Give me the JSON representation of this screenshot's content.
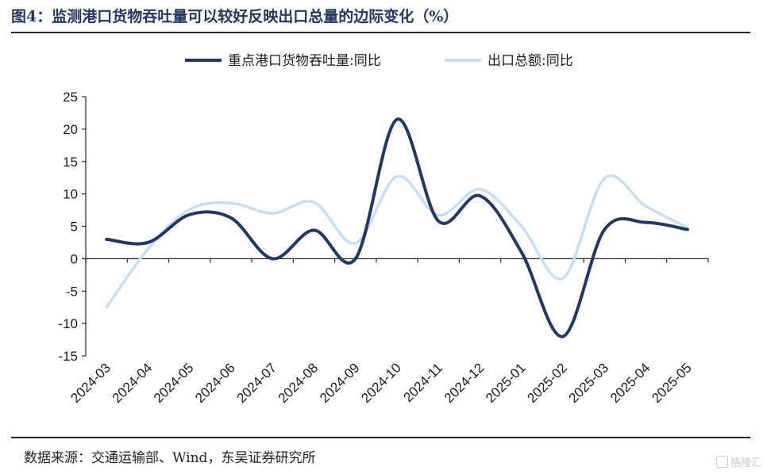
{
  "title": "图4：监测港口货物吞吐量可以较好反映出口总量的边际变化（%）",
  "source": "数据来源：交通运输部、Wind，东吴证券研究所",
  "watermark": "格隆汇",
  "chart_data": {
    "type": "line",
    "categories": [
      "2024-03",
      "2024-04",
      "2024-05",
      "2024-06",
      "2024-07",
      "2024-08",
      "2024-09",
      "2024-10",
      "2024-11",
      "2024-12",
      "2025-01",
      "2025-02",
      "2025-03",
      "2025-04",
      "2025-05"
    ],
    "ylim": [
      -15,
      25
    ],
    "yticks": [
      -15,
      -10,
      -5,
      0,
      5,
      10,
      15,
      20,
      25
    ],
    "series": [
      {
        "name": "重点港口货物吞吐量:同比",
        "color": "#1f3864",
        "values": [
          3.0,
          2.5,
          6.8,
          6.3,
          0.0,
          4.4,
          0.0,
          21.5,
          5.8,
          9.7,
          1.0,
          -12.0,
          4.5,
          5.6,
          4.5
        ]
      },
      {
        "name": "出口总额:同比",
        "color": "#c6dff5",
        "values": [
          -7.5,
          1.5,
          7.6,
          8.6,
          7.0,
          8.7,
          2.4,
          12.7,
          6.7,
          10.7,
          5.0,
          -3.0,
          12.4,
          8.1,
          4.8
        ]
      }
    ],
    "legend_position": "top",
    "grid": false
  }
}
